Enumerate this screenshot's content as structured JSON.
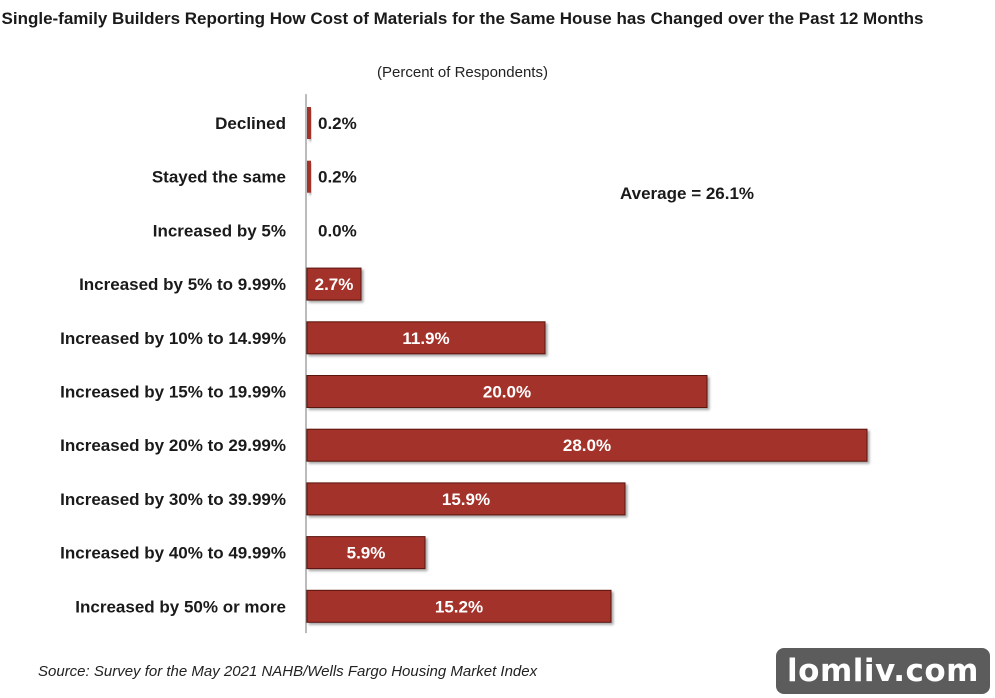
{
  "chart_data": {
    "type": "bar",
    "orientation": "horizontal",
    "title": "Single-family Builders Reporting How Cost of Materials for the Same House has Changed over the Past 12 Months",
    "subtitle": "(Percent of Respondents)",
    "categories": [
      "Declined",
      "Stayed the same",
      "Increased by 5%",
      "Increased by 5% to 9.99%",
      "Increased by 10% to 14.99%",
      "Increased by 15% to 19.99%",
      "Increased by 20% to 29.99%",
      "Increased by 30% to 39.99%",
      "Increased by 40% to 49.99%",
      "Increased by 50% or more"
    ],
    "values": [
      0.2,
      0.2,
      0.0,
      2.7,
      11.9,
      20.0,
      28.0,
      15.9,
      5.9,
      15.2
    ],
    "value_labels": [
      "0.2%",
      "0.2%",
      "0.0%",
      "2.7%",
      "11.9%",
      "20.0%",
      "28.0%",
      "15.9%",
      "5.9%",
      "15.2%"
    ],
    "annotation": "Average = 26.1%",
    "source": "Source: Survey for the May 2021 NAHB/Wells Fargo Housing Market Index",
    "bar_color": "#a3302a",
    "grid": false,
    "legend": "none"
  },
  "watermark": "lomliv.com"
}
